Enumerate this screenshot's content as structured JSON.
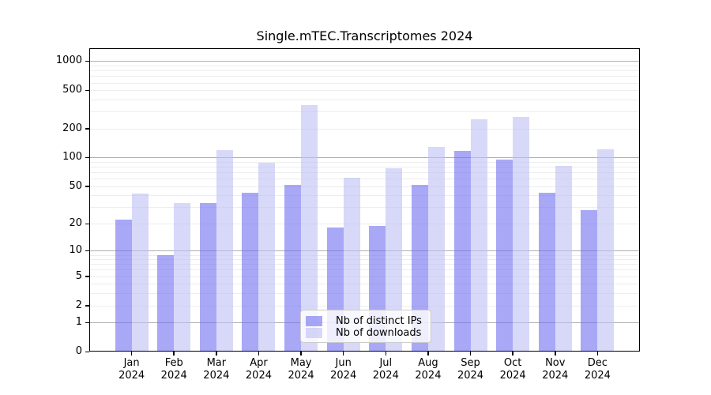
{
  "chart_data": {
    "type": "bar",
    "title": "Single.mTEC.Transcriptomes 2024",
    "categories": [
      "Jan",
      "Feb",
      "Mar",
      "Apr",
      "May",
      "Jun",
      "Jul",
      "Aug",
      "Sep",
      "Oct",
      "Nov",
      "Dec"
    ],
    "year": "2024",
    "series": [
      {
        "name": "Nb of distinct IPs",
        "color": "rgba(110,110,240,0.6)",
        "values": [
          22,
          9,
          33,
          43,
          52,
          18,
          19,
          52,
          118,
          96,
          43,
          28
        ]
      },
      {
        "name": "Nb of downloads",
        "color": "rgba(190,190,245,0.6)",
        "values": [
          42,
          33,
          119,
          88,
          350,
          62,
          78,
          130,
          250,
          265,
          82,
          121
        ]
      }
    ],
    "yscale": "log1p",
    "y_ticks": [
      0,
      1,
      2,
      5,
      10,
      20,
      50,
      100,
      200,
      500,
      1000
    ],
    "ylim": [
      0,
      1360
    ],
    "grid": true,
    "legend_position": "lower center"
  }
}
